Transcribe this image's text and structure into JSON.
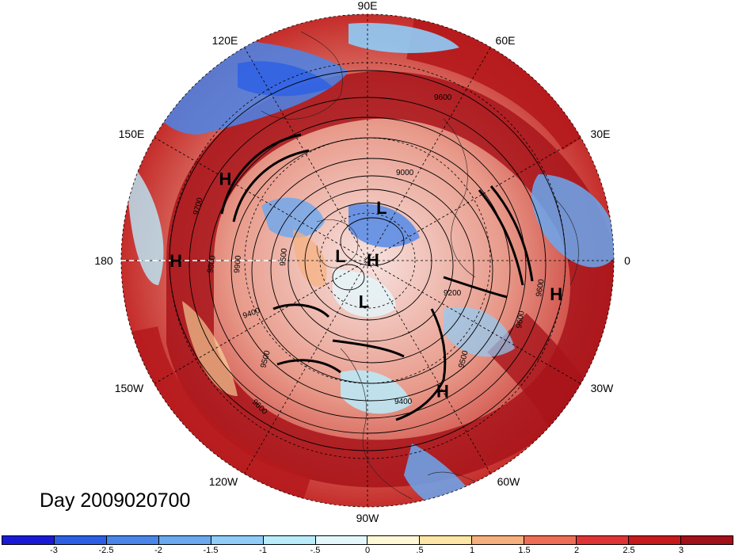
{
  "title": "Day 2009020700",
  "longitude_labels": [
    "90E",
    "60E",
    "30E",
    "0",
    "30W",
    "60W",
    "90W",
    "120W",
    "150W",
    "180",
    "150E",
    "120E"
  ],
  "pressure_centers": [
    {
      "type": "H",
      "lon": 150,
      "lat": 30
    },
    {
      "type": "H",
      "lon": 180,
      "lat": 20
    },
    {
      "type": "H",
      "lon": -10,
      "lat": 20
    },
    {
      "type": "H",
      "lon": -60,
      "lat": 35
    },
    {
      "type": "H",
      "lon": 10,
      "lat": 88
    },
    {
      "type": "L",
      "lon": 75,
      "lat": 70
    },
    {
      "type": "L",
      "lon": 170,
      "lat": 80
    },
    {
      "type": "L",
      "lon": -95,
      "lat": 75
    }
  ],
  "contour_labels": [
    "9600",
    "9000",
    "9700",
    "9800",
    "9900",
    "9500",
    "9400",
    "9500",
    "9600",
    "9200",
    "9500",
    "9400",
    "9600",
    "9600"
  ],
  "colorbar": {
    "labels": [
      "-3",
      "-2.5",
      "-2",
      "-1.5",
      "-1",
      "-.5",
      "0",
      ".5",
      "1",
      "1.5",
      "2",
      "2.5",
      "3"
    ],
    "colors": [
      "#1a1ad6",
      "#2c5fe6",
      "#4a86ea",
      "#6aa8f0",
      "#8fcdf8",
      "#b9ecfb",
      "#e4f8fc",
      "#fff8d6",
      "#fde5a5",
      "#f6b07d",
      "#ef6d55",
      "#e03434",
      "#c81a1a",
      "#a2101a"
    ]
  }
}
